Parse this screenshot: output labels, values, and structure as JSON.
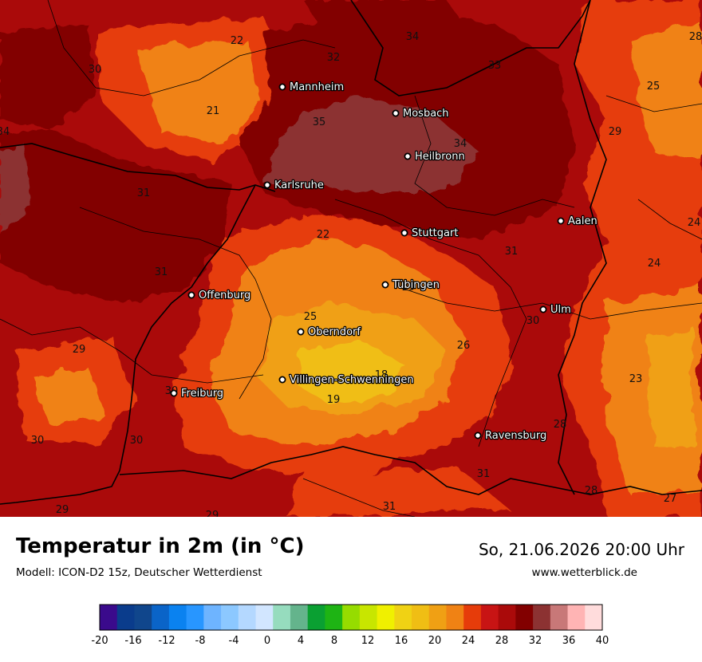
{
  "title": "Temperatur in 2m (in °C)",
  "model": "Modell: ICON-D2 15z, Deutscher Wetterdienst",
  "datetime": "So, 21.06.2026 20:00 Uhr",
  "website": "www.wetterblick.de",
  "cities": [
    {
      "name": "Mannheim"
    },
    {
      "name": "Mosbach"
    },
    {
      "name": "Heilbronn"
    },
    {
      "name": "Karlsruhe"
    },
    {
      "name": "Aalen"
    },
    {
      "name": "Stuttgart"
    },
    {
      "name": "Tübingen"
    },
    {
      "name": "Offenburg"
    },
    {
      "name": "Ulm"
    },
    {
      "name": "Oberndorf"
    },
    {
      "name": "Villingen-Schwenningen"
    },
    {
      "name": "Freiburg"
    },
    {
      "name": "Ravensburg"
    }
  ],
  "isotherm_labels": [
    "22",
    "34",
    "32",
    "33",
    "28",
    "30",
    "25",
    "21",
    "35",
    "34",
    "29",
    "34",
    "31",
    "22",
    "24",
    "31",
    "24",
    "31",
    "29",
    "25",
    "30",
    "29",
    "26",
    "18",
    "23",
    "30",
    "19",
    "30",
    "30",
    "28",
    "31",
    "28",
    "27",
    "29",
    "31",
    "29"
  ],
  "legend": {
    "ticks": [
      "-20",
      "-16",
      "-12",
      "-8",
      "-4",
      "0",
      "4",
      "8",
      "12",
      "16",
      "20",
      "24",
      "28",
      "32",
      "36",
      "40"
    ],
    "colors": [
      "#3a0a8c",
      "#0a3c8c",
      "#10468c",
      "#0a64c8",
      "#0a82f0",
      "#2896ff",
      "#6eb4ff",
      "#8cc8ff",
      "#b4d8ff",
      "#d2e6ff",
      "#96dcbe",
      "#64b48c",
      "#0aa032",
      "#1eb414",
      "#96dc00",
      "#c8e600",
      "#f0f000",
      "#f0d214",
      "#f0be14",
      "#f0a014",
      "#f08214",
      "#e63c0a",
      "#c81414",
      "#aa0a0a",
      "#820000",
      "#8c3232",
      "#c87878",
      "#ffb4b4",
      "#ffdcdc"
    ]
  },
  "unit_scale": "°C"
}
